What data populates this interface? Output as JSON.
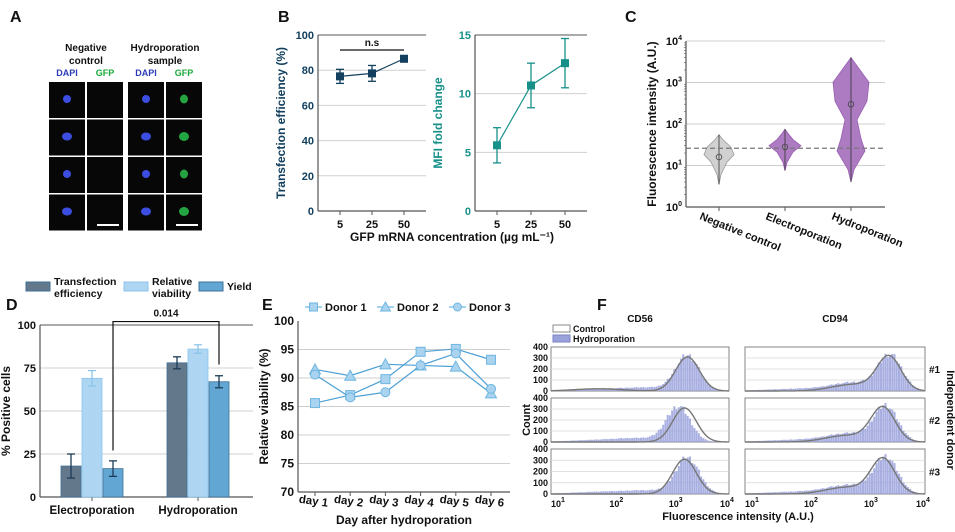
{
  "panel_labels": [
    "A",
    "B",
    "C",
    "D",
    "E",
    "F"
  ],
  "panelA": {
    "groups": [
      {
        "title_lines": [
          "Negative",
          "control"
        ],
        "channels": [
          "DAPI",
          "GFP"
        ],
        "gfp_signal": false
      },
      {
        "title_lines": [
          "Hydroporation",
          "sample"
        ],
        "channels": [
          "DAPI",
          "GFP"
        ],
        "gfp_signal": true
      }
    ],
    "rows": 4,
    "colors": {
      "dapi": "#2b3bb8",
      "gfp": "#19a83a"
    }
  },
  "chart_data": [
    {
      "id": "B1",
      "type": "line",
      "categories": [
        "5",
        "25",
        "50"
      ],
      "values": [
        76.5,
        78.2,
        86.5
      ],
      "errors": [
        4.0,
        4.5,
        1.8
      ],
      "ylabel": "Transfection efficiency (%)",
      "ylim": [
        0,
        100
      ],
      "yticks": [
        0,
        20,
        40,
        60,
        80,
        100
      ],
      "annotation": "n.s",
      "color": "#12405e",
      "grid": true
    },
    {
      "id": "B2",
      "type": "line",
      "categories": [
        "5",
        "25",
        "50"
      ],
      "values": [
        5.6,
        10.7,
        12.6
      ],
      "errors": [
        1.5,
        1.9,
        2.1
      ],
      "ylabel": "MFI fold change",
      "ylim": [
        0,
        15
      ],
      "yticks": [
        0,
        5,
        10,
        15
      ],
      "color": "#17908a",
      "grid": true,
      "shared_xlabel": "GFP mRNA concentration (µg mL⁻¹)"
    },
    {
      "id": "C",
      "type": "violin",
      "categories": [
        "Negative control",
        "Electroporation",
        "Hydroporation"
      ],
      "medians": [
        16,
        28,
        300
      ],
      "ranges": [
        [
          3.5,
          55
        ],
        [
          7.5,
          75
        ],
        [
          4,
          4000
        ]
      ],
      "ylabel": "Fluorescence intensity (A.U.)",
      "yscale": "log",
      "ylim": [
        1,
        10000
      ],
      "ytick_exponents": [
        0,
        1,
        2,
        3,
        4
      ],
      "threshold": 26,
      "colors": [
        "#cfcfcf",
        "#a874bf",
        "#a874bf"
      ]
    },
    {
      "id": "D",
      "type": "bar",
      "categories": [
        "Electroporation",
        "Hydroporation"
      ],
      "series": [
        {
          "name": "Transfection efficiency",
          "legend_lines": [
            "Transfection",
            "efficiency"
          ],
          "values": [
            18,
            78
          ],
          "errors": [
            7,
            3.5
          ],
          "color": "#64788b"
        },
        {
          "name": "Relative viability",
          "legend_lines": [
            "Relative",
            "viability"
          ],
          "values": [
            69,
            86
          ],
          "errors": [
            4.5,
            2.5
          ],
          "color": "#aed6f3"
        },
        {
          "name": "Yield",
          "legend_lines": [
            "Yield"
          ],
          "values": [
            16.5,
            67
          ],
          "errors": [
            4.5,
            3.5
          ],
          "color": "#62a7d4"
        }
      ],
      "ylabel": "% Positive cells",
      "ylim": [
        0,
        100
      ],
      "yticks": [
        0,
        25,
        50,
        75,
        100
      ],
      "significance": "0.014"
    },
    {
      "id": "E",
      "type": "line",
      "categories": [
        "day 1",
        "day 2",
        "day 3",
        "day 4",
        "day 5",
        "day 6"
      ],
      "series": [
        {
          "name": "Donor 1",
          "marker": "square",
          "values": [
            85.6,
            87.0,
            89.8,
            94.6,
            95.1,
            93.2
          ]
        },
        {
          "name": "Donor 2",
          "marker": "triangle",
          "values": [
            91.5,
            90.4,
            92.4,
            92.2,
            92.0,
            87.3
          ]
        },
        {
          "name": "Donor 3",
          "marker": "circle",
          "values": [
            90.6,
            86.6,
            87.5,
            92.2,
            94.3,
            88.1
          ]
        }
      ],
      "xlabel": "Day after hydroporation",
      "ylabel": "Relative viability (%)",
      "ylim": [
        70,
        100
      ],
      "yticks": [
        70,
        75,
        80,
        85,
        90,
        95,
        100
      ],
      "color": "#6fb6e0"
    },
    {
      "id": "F",
      "type": "histogram",
      "columns": [
        "CD56",
        "CD94"
      ],
      "rows": [
        "#1",
        "#2",
        "#3"
      ],
      "legend": [
        "Control",
        "Hydroporation"
      ],
      "xlabel": "Fluorescence intensity (A.U.)",
      "ylabel": "Count",
      "right_label": "Independent donor",
      "xscale": "log",
      "xlim": [
        10,
        10000
      ],
      "xtick_exponents": [
        1,
        2,
        3,
        4
      ],
      "ylim": [
        0,
        400
      ],
      "yticks": [
        0,
        100,
        200,
        300,
        400
      ],
      "control_peaks_log10": [
        [
          3.3,
          3.25,
          3.25
        ],
        [
          3.4,
          3.3,
          3.3
        ]
      ],
      "hydro_peaks_log10": [
        [
          3.3,
          3.15,
          3.3
        ],
        [
          3.42,
          3.35,
          3.35
        ]
      ],
      "hydro_color": "#9aa2dc"
    }
  ]
}
